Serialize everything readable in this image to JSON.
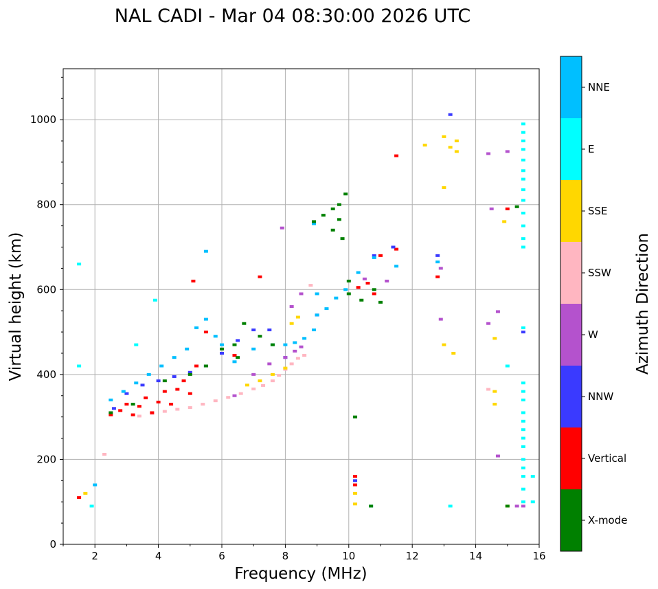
{
  "chart_data": {
    "type": "scatter",
    "title": "NAL CADI - Mar 04 08:30:00 2026 UTC",
    "xlabel": "Frequency (MHz)",
    "ylabel": "Virtual height (km)",
    "xlim": [
      1,
      16
    ],
    "ylim": [
      0,
      1120
    ],
    "xticks": [
      2,
      4,
      6,
      8,
      10,
      12,
      14,
      16
    ],
    "yticks": [
      0,
      200,
      400,
      600,
      800,
      1000
    ],
    "grid": true,
    "colorbar": {
      "label": "Azimuth Direction",
      "categories": [
        "NNE",
        "E",
        "SSE",
        "SSW",
        "W",
        "NNW",
        "Vertical",
        "X-mode"
      ],
      "colors": [
        "#00bfff",
        "#00ffff",
        "#ffd700",
        "#ffb6c1",
        "#b452cd",
        "#3a3aff",
        "#ff0000",
        "#008000"
      ]
    },
    "series": [
      {
        "name": "SSW",
        "color": "#ffb6c1",
        "points": [
          [
            3.4,
            302
          ],
          [
            3.8,
            308
          ],
          [
            4.2,
            313
          ],
          [
            4.6,
            318
          ],
          [
            5.0,
            322
          ],
          [
            5.4,
            330
          ],
          [
            5.8,
            338
          ],
          [
            6.2,
            346
          ],
          [
            6.6,
            355
          ],
          [
            7.0,
            366
          ],
          [
            7.3,
            374
          ],
          [
            7.6,
            385
          ],
          [
            7.8,
            398
          ],
          [
            8.0,
            412
          ],
          [
            8.2,
            425
          ],
          [
            8.4,
            438
          ],
          [
            8.6,
            445
          ],
          [
            8.8,
            610
          ],
          [
            14.4,
            365
          ],
          [
            2.3,
            212
          ]
        ]
      },
      {
        "name": "Vertical",
        "color": "#ff0000",
        "points": [
          [
            2.5,
            305
          ],
          [
            2.8,
            315
          ],
          [
            3.0,
            330
          ],
          [
            3.2,
            305
          ],
          [
            3.4,
            325
          ],
          [
            3.6,
            345
          ],
          [
            3.8,
            310
          ],
          [
            4.0,
            335
          ],
          [
            4.2,
            360
          ],
          [
            4.4,
            330
          ],
          [
            4.6,
            365
          ],
          [
            4.8,
            385
          ],
          [
            5.0,
            355
          ],
          [
            5.2,
            420
          ],
          [
            5.5,
            500
          ],
          [
            5.1,
            620
          ],
          [
            6.4,
            445
          ],
          [
            7.2,
            630
          ],
          [
            10.3,
            605
          ],
          [
            10.6,
            615
          ],
          [
            10.8,
            590
          ],
          [
            11.0,
            680
          ],
          [
            11.5,
            695
          ],
          [
            11.5,
            915
          ],
          [
            12.8,
            630
          ],
          [
            15.0,
            790
          ],
          [
            10.2,
            160
          ],
          [
            10.2,
            140
          ],
          [
            1.5,
            110
          ]
        ]
      },
      {
        "name": "NNW",
        "color": "#3a3aff",
        "points": [
          [
            2.6,
            320
          ],
          [
            3.0,
            355
          ],
          [
            3.5,
            375
          ],
          [
            4.0,
            385
          ],
          [
            4.5,
            395
          ],
          [
            5.0,
            405
          ],
          [
            5.5,
            420
          ],
          [
            6.0,
            450
          ],
          [
            6.5,
            480
          ],
          [
            7.0,
            505
          ],
          [
            7.5,
            505
          ],
          [
            8.0,
            440
          ],
          [
            9.0,
            540
          ],
          [
            10.8,
            680
          ],
          [
            11.4,
            700
          ],
          [
            12.8,
            680
          ],
          [
            13.2,
            1012
          ],
          [
            10.2,
            150
          ],
          [
            15.5,
            500
          ]
        ]
      },
      {
        "name": "W",
        "color": "#b452cd",
        "points": [
          [
            6.4,
            350
          ],
          [
            7.0,
            400
          ],
          [
            7.5,
            425
          ],
          [
            8.0,
            440
          ],
          [
            8.3,
            455
          ],
          [
            8.5,
            465
          ],
          [
            7.9,
            745
          ],
          [
            8.2,
            560
          ],
          [
            8.5,
            590
          ],
          [
            10.5,
            625
          ],
          [
            11.2,
            620
          ],
          [
            12.9,
            530
          ],
          [
            12.9,
            650
          ],
          [
            14.4,
            520
          ],
          [
            14.5,
            790
          ],
          [
            14.7,
            548
          ],
          [
            15.0,
            925
          ],
          [
            14.4,
            920
          ],
          [
            14.7,
            208
          ],
          [
            15.3,
            90
          ],
          [
            15.5,
            90
          ]
        ]
      },
      {
        "name": "SSE",
        "color": "#ffd700",
        "points": [
          [
            6.8,
            375
          ],
          [
            7.2,
            385
          ],
          [
            7.6,
            400
          ],
          [
            8.0,
            415
          ],
          [
            8.2,
            520
          ],
          [
            8.4,
            535
          ],
          [
            12.4,
            940
          ],
          [
            13.0,
            960
          ],
          [
            13.2,
            935
          ],
          [
            13.4,
            950
          ],
          [
            13.4,
            925
          ],
          [
            13.0,
            840
          ],
          [
            13.0,
            470
          ],
          [
            13.3,
            450
          ],
          [
            14.6,
            485
          ],
          [
            14.6,
            360
          ],
          [
            14.6,
            330
          ],
          [
            14.9,
            760
          ],
          [
            15.0,
            90
          ],
          [
            10.2,
            120
          ],
          [
            10.2,
            95
          ],
          [
            1.7,
            120
          ]
        ]
      },
      {
        "name": "E",
        "color": "#00ffff",
        "points": [
          [
            15.5,
            990
          ],
          [
            15.5,
            970
          ],
          [
            15.5,
            950
          ],
          [
            15.5,
            930
          ],
          [
            15.5,
            905
          ],
          [
            15.5,
            880
          ],
          [
            15.5,
            860
          ],
          [
            15.5,
            835
          ],
          [
            15.5,
            810
          ],
          [
            15.5,
            780
          ],
          [
            15.5,
            750
          ],
          [
            15.5,
            720
          ],
          [
            15.5,
            700
          ],
          [
            15.5,
            510
          ],
          [
            15.5,
            380
          ],
          [
            15.5,
            360
          ],
          [
            15.5,
            340
          ],
          [
            15.5,
            310
          ],
          [
            15.5,
            290
          ],
          [
            15.5,
            270
          ],
          [
            15.5,
            250
          ],
          [
            15.5,
            230
          ],
          [
            15.5,
            200
          ],
          [
            15.5,
            180
          ],
          [
            15.5,
            160
          ],
          [
            15.5,
            130
          ],
          [
            15.5,
            100
          ],
          [
            15.8,
            160
          ],
          [
            15.8,
            100
          ],
          [
            13.2,
            90
          ],
          [
            10.7,
            90
          ],
          [
            15.0,
            420
          ],
          [
            3.9,
            575
          ],
          [
            3.3,
            470
          ],
          [
            1.5,
            660
          ],
          [
            1.5,
            420
          ],
          [
            1.9,
            90
          ]
        ]
      },
      {
        "name": "NNE",
        "color": "#00bfff",
        "points": [
          [
            2.5,
            340
          ],
          [
            2.9,
            360
          ],
          [
            3.3,
            380
          ],
          [
            3.7,
            400
          ],
          [
            4.1,
            420
          ],
          [
            4.5,
            440
          ],
          [
            4.9,
            460
          ],
          [
            5.2,
            510
          ],
          [
            5.5,
            530
          ],
          [
            5.8,
            490
          ],
          [
            6.0,
            470
          ],
          [
            6.4,
            430
          ],
          [
            7.0,
            460
          ],
          [
            7.6,
            470
          ],
          [
            8.0,
            470
          ],
          [
            8.3,
            475
          ],
          [
            8.6,
            485
          ],
          [
            8.9,
            505
          ],
          [
            9.0,
            540
          ],
          [
            9.0,
            590
          ],
          [
            9.3,
            555
          ],
          [
            9.6,
            580
          ],
          [
            9.9,
            600
          ],
          [
            10.3,
            640
          ],
          [
            10.8,
            675
          ],
          [
            11.5,
            655
          ],
          [
            12.8,
            665
          ],
          [
            8.9,
            755
          ],
          [
            5.5,
            690
          ],
          [
            2.0,
            140
          ]
        ]
      },
      {
        "name": "X-mode",
        "color": "#008000",
        "points": [
          [
            2.5,
            310
          ],
          [
            3.2,
            330
          ],
          [
            4.2,
            385
          ],
          [
            5.0,
            400
          ],
          [
            5.5,
            420
          ],
          [
            6.0,
            460
          ],
          [
            6.4,
            470
          ],
          [
            6.5,
            440
          ],
          [
            6.7,
            520
          ],
          [
            7.2,
            490
          ],
          [
            7.6,
            470
          ],
          [
            8.9,
            760
          ],
          [
            9.2,
            775
          ],
          [
            9.5,
            790
          ],
          [
            9.7,
            800
          ],
          [
            9.9,
            825
          ],
          [
            9.5,
            740
          ],
          [
            9.7,
            765
          ],
          [
            9.8,
            720
          ],
          [
            10.0,
            590
          ],
          [
            10.0,
            620
          ],
          [
            10.4,
            575
          ],
          [
            10.8,
            600
          ],
          [
            11.0,
            570
          ],
          [
            15.3,
            795
          ],
          [
            10.2,
            300
          ],
          [
            10.7,
            90
          ],
          [
            15.0,
            90
          ]
        ]
      }
    ]
  }
}
